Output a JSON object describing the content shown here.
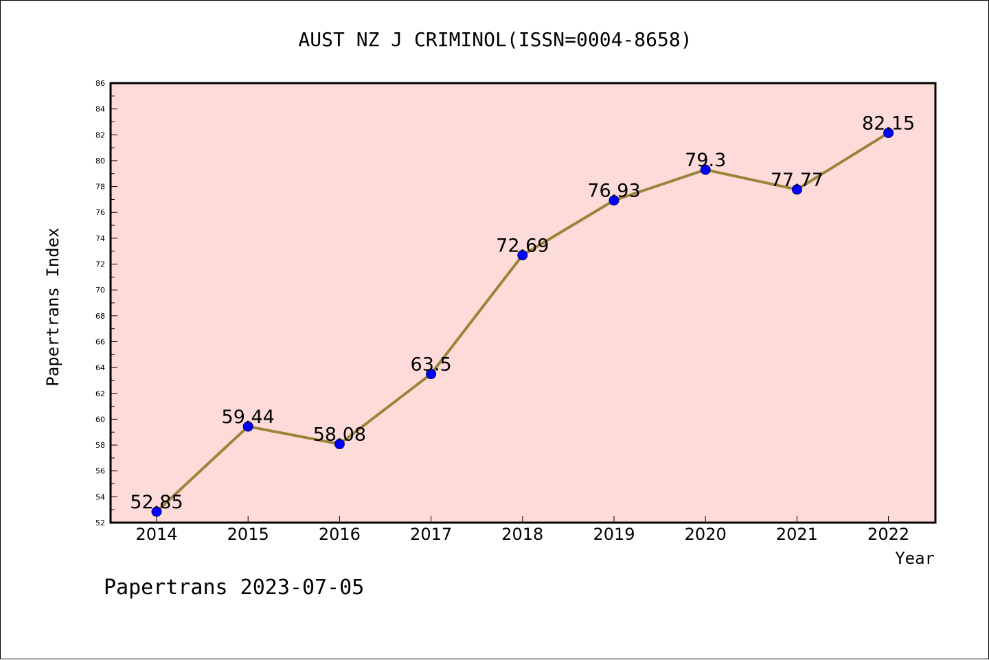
{
  "chart_data": {
    "type": "line",
    "title": "AUST NZ J CRIMINOL(ISSN=0004-8658)",
    "xlabel": "Year",
    "ylabel": "Papertrans Index",
    "categories": [
      "2014",
      "2015",
      "2016",
      "2017",
      "2018",
      "2019",
      "2020",
      "2021",
      "2022"
    ],
    "values": [
      52.85,
      59.44,
      58.08,
      63.5,
      72.69,
      76.93,
      79.3,
      77.77,
      82.15
    ],
    "data_labels": [
      "52.85",
      "59.44",
      "58.08",
      "63.5",
      "72.69",
      "76.93",
      "79.3",
      "77.77",
      "82.15"
    ],
    "ylim": [
      52,
      86
    ],
    "yticks": [
      "52",
      "54",
      "56",
      "58",
      "60",
      "62",
      "64",
      "66",
      "68",
      "70",
      "72",
      "74",
      "76",
      "78",
      "80",
      "82",
      "84",
      "86"
    ],
    "grid": false,
    "legend": "none",
    "colors": {
      "plot_background": "#fddbd9",
      "line": "#9b8439",
      "marker_fill": "#0000ff",
      "marker_edge": "#000066"
    }
  },
  "footer": "Papertrans 2023-07-05"
}
